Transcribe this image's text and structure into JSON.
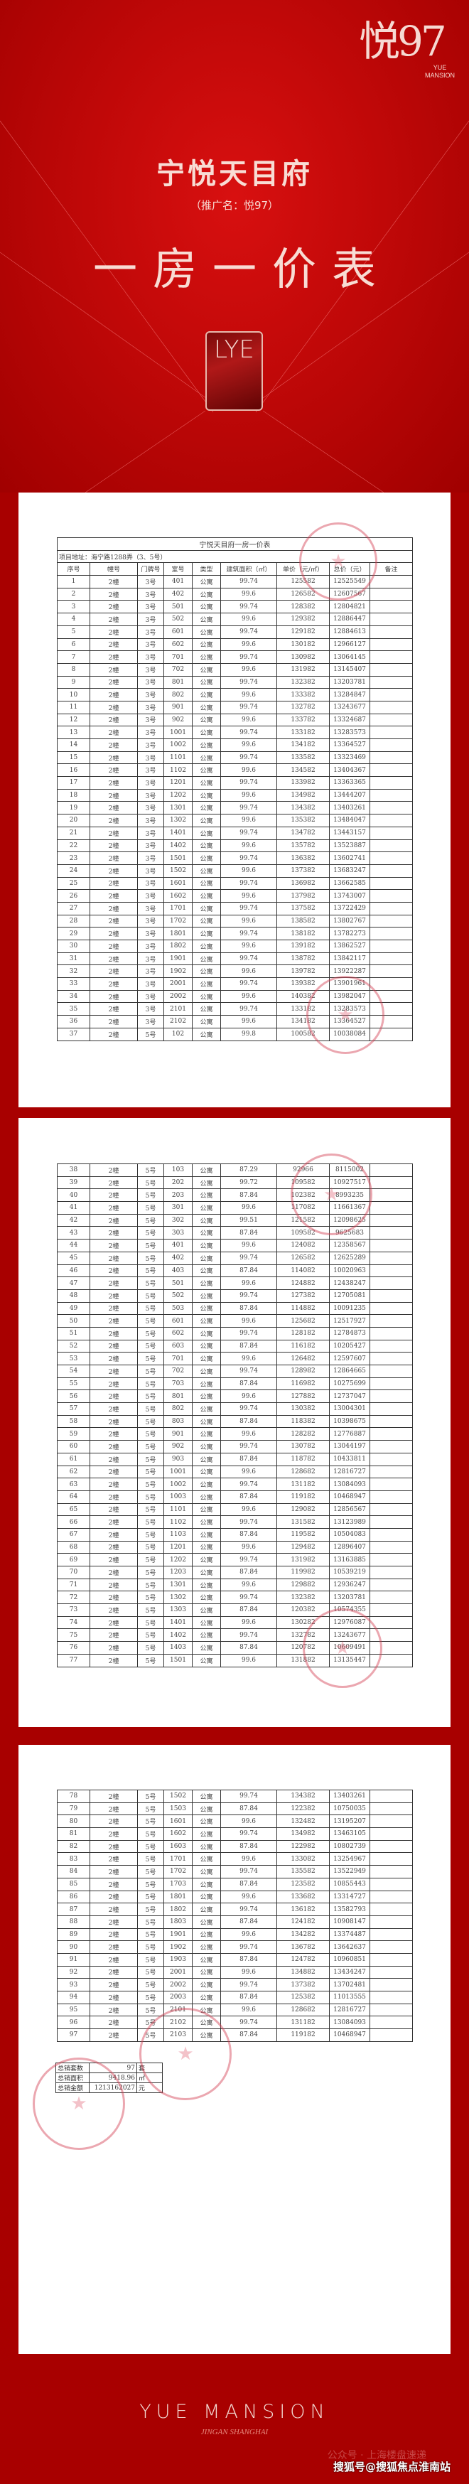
{
  "header": {
    "logo_text": "悦97",
    "logo_sub": "YUE MANSION",
    "title": "宁悦天目府",
    "subtitle": "（推广名：悦97）",
    "heading": "一房一价表",
    "emblem": "LYE"
  },
  "colors": {
    "brand_red": "#a80000",
    "stamp": "#d23c50"
  },
  "table": {
    "caption": "宁悦天目府一房一价表",
    "address": "项目地址：海宁路1288弄（3、5号）",
    "columns": [
      "序号",
      "幢号",
      "门牌号",
      "室号",
      "类型",
      "建筑面积（㎡）",
      "单价（元/㎡）",
      "总价（元）",
      "备注"
    ],
    "pages": [
      [
        [
          "1",
          "2幢",
          "3号",
          "401",
          "公寓",
          "99.74",
          "125582",
          "12525549"
        ],
        [
          "2",
          "2幢",
          "3号",
          "402",
          "公寓",
          "99.6",
          "126582",
          "12607567"
        ],
        [
          "3",
          "2幢",
          "3号",
          "501",
          "公寓",
          "99.74",
          "128382",
          "12804821"
        ],
        [
          "4",
          "2幢",
          "3号",
          "502",
          "公寓",
          "99.6",
          "129382",
          "12886447"
        ],
        [
          "5",
          "2幢",
          "3号",
          "601",
          "公寓",
          "99.74",
          "129182",
          "12884613"
        ],
        [
          "6",
          "2幢",
          "3号",
          "602",
          "公寓",
          "99.6",
          "130182",
          "12966127"
        ],
        [
          "7",
          "2幢",
          "3号",
          "701",
          "公寓",
          "99.74",
          "130982",
          "13064145"
        ],
        [
          "8",
          "2幢",
          "3号",
          "702",
          "公寓",
          "99.6",
          "131982",
          "13145407"
        ],
        [
          "9",
          "2幢",
          "3号",
          "801",
          "公寓",
          "99.74",
          "132382",
          "13203781"
        ],
        [
          "10",
          "2幢",
          "3号",
          "802",
          "公寓",
          "99.6",
          "133382",
          "13284847"
        ],
        [
          "11",
          "2幢",
          "3号",
          "901",
          "公寓",
          "99.74",
          "132782",
          "13243677"
        ],
        [
          "12",
          "2幢",
          "3号",
          "902",
          "公寓",
          "99.6",
          "133782",
          "13324687"
        ],
        [
          "13",
          "2幢",
          "3号",
          "1001",
          "公寓",
          "99.74",
          "133182",
          "13283573"
        ],
        [
          "14",
          "2幢",
          "3号",
          "1002",
          "公寓",
          "99.6",
          "134182",
          "13364527"
        ],
        [
          "15",
          "2幢",
          "3号",
          "1101",
          "公寓",
          "99.74",
          "133582",
          "13323469"
        ],
        [
          "16",
          "2幢",
          "3号",
          "1102",
          "公寓",
          "99.6",
          "134582",
          "13404367"
        ],
        [
          "17",
          "2幢",
          "3号",
          "1201",
          "公寓",
          "99.74",
          "133982",
          "13363365"
        ],
        [
          "18",
          "2幢",
          "3号",
          "1202",
          "公寓",
          "99.6",
          "134982",
          "13444207"
        ],
        [
          "19",
          "2幢",
          "3号",
          "1301",
          "公寓",
          "99.74",
          "134382",
          "13403261"
        ],
        [
          "20",
          "2幢",
          "3号",
          "1302",
          "公寓",
          "99.6",
          "135382",
          "13484047"
        ],
        [
          "21",
          "2幢",
          "3号",
          "1401",
          "公寓",
          "99.74",
          "134782",
          "13443157"
        ],
        [
          "22",
          "2幢",
          "3号",
          "1402",
          "公寓",
          "99.6",
          "135782",
          "13523887"
        ],
        [
          "23",
          "2幢",
          "3号",
          "1501",
          "公寓",
          "99.74",
          "136382",
          "13602741"
        ],
        [
          "24",
          "2幢",
          "3号",
          "1502",
          "公寓",
          "99.6",
          "137382",
          "13683247"
        ],
        [
          "25",
          "2幢",
          "3号",
          "1601",
          "公寓",
          "99.74",
          "136982",
          "13662585"
        ],
        [
          "26",
          "2幢",
          "3号",
          "1602",
          "公寓",
          "99.6",
          "137982",
          "13743007"
        ],
        [
          "27",
          "2幢",
          "3号",
          "1701",
          "公寓",
          "99.74",
          "137582",
          "13722429"
        ],
        [
          "28",
          "2幢",
          "3号",
          "1702",
          "公寓",
          "99.6",
          "138582",
          "13802767"
        ],
        [
          "29",
          "2幢",
          "3号",
          "1801",
          "公寓",
          "99.74",
          "138182",
          "13782273"
        ],
        [
          "30",
          "2幢",
          "3号",
          "1802",
          "公寓",
          "99.6",
          "139182",
          "13862527"
        ],
        [
          "31",
          "2幢",
          "3号",
          "1901",
          "公寓",
          "99.74",
          "138782",
          "13842117"
        ],
        [
          "32",
          "2幢",
          "3号",
          "1902",
          "公寓",
          "99.6",
          "139782",
          "13922287"
        ],
        [
          "33",
          "2幢",
          "3号",
          "2001",
          "公寓",
          "99.74",
          "139382",
          "13901961"
        ],
        [
          "34",
          "2幢",
          "3号",
          "2002",
          "公寓",
          "99.6",
          "140382",
          "13982047"
        ],
        [
          "35",
          "2幢",
          "3号",
          "2101",
          "公寓",
          "99.74",
          "133182",
          "13283573"
        ],
        [
          "36",
          "2幢",
          "3号",
          "2102",
          "公寓",
          "99.6",
          "134182",
          "13364527"
        ],
        [
          "37",
          "2幢",
          "5号",
          "102",
          "公寓",
          "99.8",
          "100582",
          "10038084"
        ]
      ],
      [
        [
          "38",
          "2幢",
          "5号",
          "103",
          "公寓",
          "87.29",
          "92966",
          "8115002"
        ],
        [
          "39",
          "2幢",
          "5号",
          "202",
          "公寓",
          "99.72",
          "109582",
          "10927517"
        ],
        [
          "40",
          "2幢",
          "5号",
          "203",
          "公寓",
          "87.84",
          "102382",
          "8993235"
        ],
        [
          "41",
          "2幢",
          "5号",
          "301",
          "公寓",
          "99.6",
          "117082",
          "11661367"
        ],
        [
          "42",
          "2幢",
          "5号",
          "302",
          "公寓",
          "99.51",
          "121582",
          "12098625"
        ],
        [
          "43",
          "2幢",
          "5号",
          "303",
          "公寓",
          "87.84",
          "109582",
          "9625683"
        ],
        [
          "44",
          "2幢",
          "5号",
          "401",
          "公寓",
          "99.6",
          "124082",
          "12358567"
        ],
        [
          "45",
          "2幢",
          "5号",
          "402",
          "公寓",
          "99.74",
          "126582",
          "12625289"
        ],
        [
          "46",
          "2幢",
          "5号",
          "403",
          "公寓",
          "87.84",
          "114082",
          "10020963"
        ],
        [
          "47",
          "2幢",
          "5号",
          "501",
          "公寓",
          "99.6",
          "124882",
          "12438247"
        ],
        [
          "48",
          "2幢",
          "5号",
          "502",
          "公寓",
          "99.74",
          "127382",
          "12705081"
        ],
        [
          "49",
          "2幢",
          "5号",
          "503",
          "公寓",
          "87.84",
          "114882",
          "10091235"
        ],
        [
          "50",
          "2幢",
          "5号",
          "601",
          "公寓",
          "99.6",
          "125682",
          "12517927"
        ],
        [
          "51",
          "2幢",
          "5号",
          "602",
          "公寓",
          "99.74",
          "128182",
          "12784873"
        ],
        [
          "52",
          "2幢",
          "5号",
          "603",
          "公寓",
          "87.84",
          "116182",
          "10205427"
        ],
        [
          "53",
          "2幢",
          "5号",
          "701",
          "公寓",
          "99.6",
          "126482",
          "12597607"
        ],
        [
          "54",
          "2幢",
          "5号",
          "702",
          "公寓",
          "99.74",
          "128982",
          "12864665"
        ],
        [
          "55",
          "2幢",
          "5号",
          "703",
          "公寓",
          "87.84",
          "116982",
          "10275699"
        ],
        [
          "56",
          "2幢",
          "5号",
          "801",
          "公寓",
          "99.6",
          "127882",
          "12737047"
        ],
        [
          "57",
          "2幢",
          "5号",
          "802",
          "公寓",
          "99.74",
          "130382",
          "13004301"
        ],
        [
          "58",
          "2幢",
          "5号",
          "803",
          "公寓",
          "87.84",
          "118382",
          "10398675"
        ],
        [
          "59",
          "2幢",
          "5号",
          "901",
          "公寓",
          "99.6",
          "128282",
          "12776887"
        ],
        [
          "60",
          "2幢",
          "5号",
          "902",
          "公寓",
          "99.74",
          "130782",
          "13044197"
        ],
        [
          "61",
          "2幢",
          "5号",
          "903",
          "公寓",
          "87.84",
          "118782",
          "10433811"
        ],
        [
          "62",
          "2幢",
          "5号",
          "1001",
          "公寓",
          "99.6",
          "128682",
          "12816727"
        ],
        [
          "63",
          "2幢",
          "5号",
          "1002",
          "公寓",
          "99.74",
          "131182",
          "13084093"
        ],
        [
          "64",
          "2幢",
          "5号",
          "1003",
          "公寓",
          "87.84",
          "119182",
          "10468947"
        ],
        [
          "65",
          "2幢",
          "5号",
          "1101",
          "公寓",
          "99.6",
          "129082",
          "12856567"
        ],
        [
          "66",
          "2幢",
          "5号",
          "1102",
          "公寓",
          "99.74",
          "131582",
          "13123989"
        ],
        [
          "67",
          "2幢",
          "5号",
          "1103",
          "公寓",
          "87.84",
          "119582",
          "10504083"
        ],
        [
          "68",
          "2幢",
          "5号",
          "1201",
          "公寓",
          "99.6",
          "129482",
          "12896407"
        ],
        [
          "69",
          "2幢",
          "5号",
          "1202",
          "公寓",
          "99.74",
          "131982",
          "13163885"
        ],
        [
          "70",
          "2幢",
          "5号",
          "1203",
          "公寓",
          "87.84",
          "119982",
          "10539219"
        ],
        [
          "71",
          "2幢",
          "5号",
          "1301",
          "公寓",
          "99.6",
          "129882",
          "12936247"
        ],
        [
          "72",
          "2幢",
          "5号",
          "1302",
          "公寓",
          "99.74",
          "132382",
          "13203781"
        ],
        [
          "73",
          "2幢",
          "5号",
          "1303",
          "公寓",
          "87.84",
          "120382",
          "10574355"
        ],
        [
          "74",
          "2幢",
          "5号",
          "1401",
          "公寓",
          "99.6",
          "130282",
          "12976087"
        ],
        [
          "75",
          "2幢",
          "5号",
          "1402",
          "公寓",
          "99.74",
          "132782",
          "13243677"
        ],
        [
          "76",
          "2幢",
          "5号",
          "1403",
          "公寓",
          "87.84",
          "120782",
          "10609491"
        ],
        [
          "77",
          "2幢",
          "5号",
          "1501",
          "公寓",
          "99.6",
          "131882",
          "13135447"
        ]
      ],
      [
        [
          "78",
          "2幢",
          "5号",
          "1502",
          "公寓",
          "99.74",
          "134382",
          "13403261"
        ],
        [
          "79",
          "2幢",
          "5号",
          "1503",
          "公寓",
          "87.84",
          "122382",
          "10750035"
        ],
        [
          "80",
          "2幢",
          "5号",
          "1601",
          "公寓",
          "99.6",
          "132482",
          "13195207"
        ],
        [
          "81",
          "2幢",
          "5号",
          "1602",
          "公寓",
          "99.74",
          "134982",
          "13463105"
        ],
        [
          "82",
          "2幢",
          "5号",
          "1603",
          "公寓",
          "87.84",
          "122982",
          "10802739"
        ],
        [
          "83",
          "2幢",
          "5号",
          "1701",
          "公寓",
          "99.6",
          "133082",
          "13254967"
        ],
        [
          "84",
          "2幢",
          "5号",
          "1702",
          "公寓",
          "99.74",
          "135582",
          "13522949"
        ],
        [
          "85",
          "2幢",
          "5号",
          "1703",
          "公寓",
          "87.84",
          "123582",
          "10855443"
        ],
        [
          "86",
          "2幢",
          "5号",
          "1801",
          "公寓",
          "99.6",
          "133682",
          "13314727"
        ],
        [
          "87",
          "2幢",
          "5号",
          "1802",
          "公寓",
          "99.74",
          "136182",
          "13582793"
        ],
        [
          "88",
          "2幢",
          "5号",
          "1803",
          "公寓",
          "87.84",
          "124182",
          "10908147"
        ],
        [
          "89",
          "2幢",
          "5号",
          "1901",
          "公寓",
          "99.6",
          "134282",
          "13374487"
        ],
        [
          "90",
          "2幢",
          "5号",
          "1902",
          "公寓",
          "99.74",
          "136782",
          "13642637"
        ],
        [
          "91",
          "2幢",
          "5号",
          "1903",
          "公寓",
          "87.84",
          "124782",
          "10960851"
        ],
        [
          "92",
          "2幢",
          "5号",
          "2001",
          "公寓",
          "99.6",
          "134882",
          "13434247"
        ],
        [
          "93",
          "2幢",
          "5号",
          "2002",
          "公寓",
          "99.74",
          "137382",
          "13702481"
        ],
        [
          "94",
          "2幢",
          "5号",
          "2003",
          "公寓",
          "87.84",
          "125382",
          "11013555"
        ],
        [
          "95",
          "2幢",
          "5号",
          "2101",
          "公寓",
          "99.6",
          "128682",
          "12816727"
        ],
        [
          "96",
          "2幢",
          "5号",
          "2102",
          "公寓",
          "99.74",
          "131182",
          "13084093"
        ],
        [
          "97",
          "2幢",
          "5号",
          "2103",
          "公寓",
          "87.84",
          "119182",
          "10468947"
        ]
      ]
    ]
  },
  "summary": [
    {
      "label": "总销套数",
      "value": "97",
      "unit": "套"
    },
    {
      "label": "总销面积",
      "value": "9418.96",
      "unit": "㎡"
    },
    {
      "label": "总销金额",
      "value": "1213162027",
      "unit": "元"
    }
  ],
  "footer": {
    "brand": "YUE MANSION",
    "location": "JINGAN  SHANGHAI",
    "watermark_faint": "公众号 · 上海楼盘速递",
    "watermark": "搜狐号@搜狐焦点淮南站"
  }
}
